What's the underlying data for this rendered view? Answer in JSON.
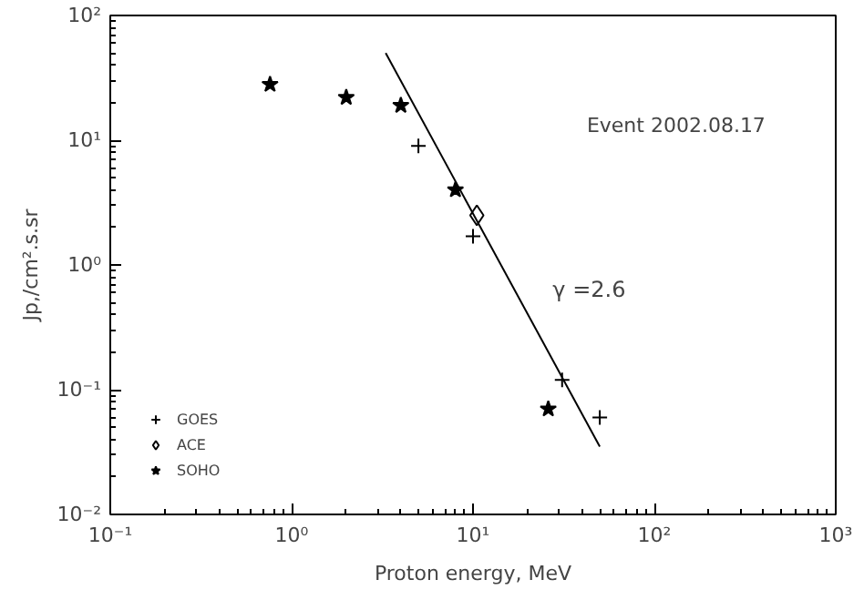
{
  "chart_data": {
    "type": "scatter",
    "xlabel": "Proton energy, MeV",
    "ylabel": "Jp,/cm².s.sr",
    "log": "xy",
    "grid": false,
    "legend": "bottom left",
    "xlim": [
      0.1,
      1000
    ],
    "ylim": [
      0.01,
      100
    ],
    "xticks": [
      {
        "value": 0.1,
        "label": "10⁻¹"
      },
      {
        "value": 1,
        "label": "10⁰"
      },
      {
        "value": 10,
        "label": "10¹"
      },
      {
        "value": 100,
        "label": "10²"
      },
      {
        "value": 1000,
        "label": "10³"
      }
    ],
    "yticks": [
      {
        "value": 0.01,
        "label": "10⁻²"
      },
      {
        "value": 0.1,
        "label": "10⁻¹"
      },
      {
        "value": 1,
        "label": "10⁰"
      },
      {
        "value": 10,
        "label": "10¹"
      },
      {
        "value": 100,
        "label": "10²"
      }
    ],
    "annotations": [
      "Event 2002.08.17",
      "γ =2.6"
    ],
    "series": [
      {
        "name": "GOES",
        "marker": "cross",
        "color": "#000000",
        "x": [
          5,
          10,
          31,
          50
        ],
        "values": [
          9,
          1.7,
          0.12,
          0.06
        ]
      },
      {
        "name": "ACE",
        "marker": "diamond",
        "color": "#000000",
        "x": [
          10.5
        ],
        "values": [
          2.5
        ]
      },
      {
        "name": "SOHO",
        "marker": "star",
        "color": "#000000",
        "x": [
          0.76,
          2,
          4,
          8,
          26
        ],
        "values": [
          28,
          22,
          19,
          4,
          0.07
        ]
      },
      {
        "type": "line",
        "color": "#000000",
        "line_style": "solid",
        "x": [
          3.3,
          50
        ],
        "values": [
          50,
          0.035
        ]
      }
    ]
  }
}
